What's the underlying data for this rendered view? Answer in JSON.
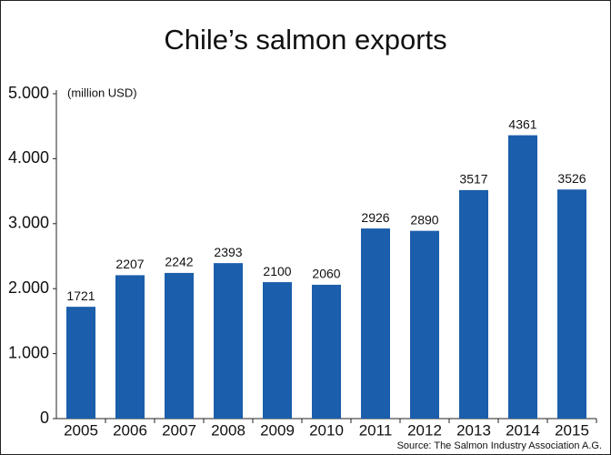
{
  "chart_data": {
    "type": "bar",
    "title": "Chile’s salmon exports",
    "unit_label": "(million USD)",
    "categories": [
      "2005",
      "2006",
      "2007",
      "2008",
      "2009",
      "2010",
      "2011",
      "2012",
      "2013",
      "2014",
      "2015"
    ],
    "values": [
      1721,
      2207,
      2242,
      2393,
      2100,
      2060,
      2926,
      2890,
      3517,
      4361,
      3526
    ],
    "color": "#1b5eab",
    "ylim": [
      0,
      5000
    ],
    "yticks": [
      0,
      {
        "value": 1000,
        "label": "1.000"
      },
      {
        "value": 2000,
        "label": "2.000"
      },
      {
        "value": 3000,
        "label": "3.000"
      },
      {
        "value": 4000,
        "label": "4.000"
      },
      {
        "value": 5000,
        "label": "5.000"
      }
    ],
    "grid": false,
    "source": "Source: The Salmon Industry Association A.G."
  }
}
